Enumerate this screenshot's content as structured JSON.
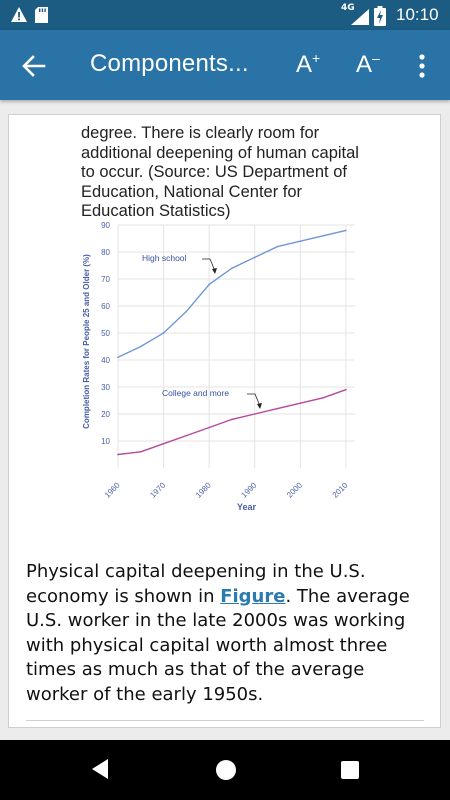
{
  "status_bar": {
    "network": "4G",
    "time": "10:10",
    "icons": [
      "warning-icon",
      "sd-card-icon",
      "signal-icon",
      "battery-charging-icon"
    ]
  },
  "app_bar": {
    "title": "Components...",
    "font_increase": "A",
    "font_increase_sign": "+",
    "font_decrease": "A",
    "font_decrease_sign": "–",
    "icons": [
      "back-arrow-icon",
      "more-vert-icon"
    ]
  },
  "content": {
    "caption": "degree. There is clearly room for additional deepening of human capital to occur. (Source: US Department of Education, National Center for Education Statistics)",
    "body_before_link": "Physical capital deepening in the U.S. economy is shown in ",
    "link_text": "Figure",
    "body_after_link": ". The average U.S. worker in the late 2000s was working with physical capital worth almost three times as much as that of the average worker of the early 1950s."
  },
  "chart_data": {
    "type": "line",
    "xlabel": "Year",
    "ylabel": "Completion Rates for People 25 and Older (%)",
    "xlim": [
      1960,
      2012
    ],
    "ylim": [
      0,
      90
    ],
    "x_ticks": [
      "1960",
      "1970",
      "1980",
      "1990",
      "2000",
      "2010"
    ],
    "y_ticks": [
      "10",
      "20",
      "30",
      "40",
      "50",
      "60",
      "70",
      "80",
      "90"
    ],
    "grid": true,
    "series": [
      {
        "name": "High school",
        "color": "#6f97d6",
        "x": [
          1960,
          1965,
          1970,
          1975,
          1980,
          1985,
          1990,
          1995,
          2000,
          2005,
          2010
        ],
        "values": [
          41,
          45,
          50,
          58,
          68,
          74,
          78,
          82,
          84,
          86,
          88
        ]
      },
      {
        "name": "College and more",
        "color": "#b5489e",
        "x": [
          1960,
          1965,
          1970,
          1975,
          1980,
          1985,
          1990,
          1995,
          2000,
          2005,
          2010
        ],
        "values": [
          5,
          6,
          9,
          12,
          15,
          18,
          20,
          22,
          24,
          26,
          29
        ]
      }
    ]
  }
}
